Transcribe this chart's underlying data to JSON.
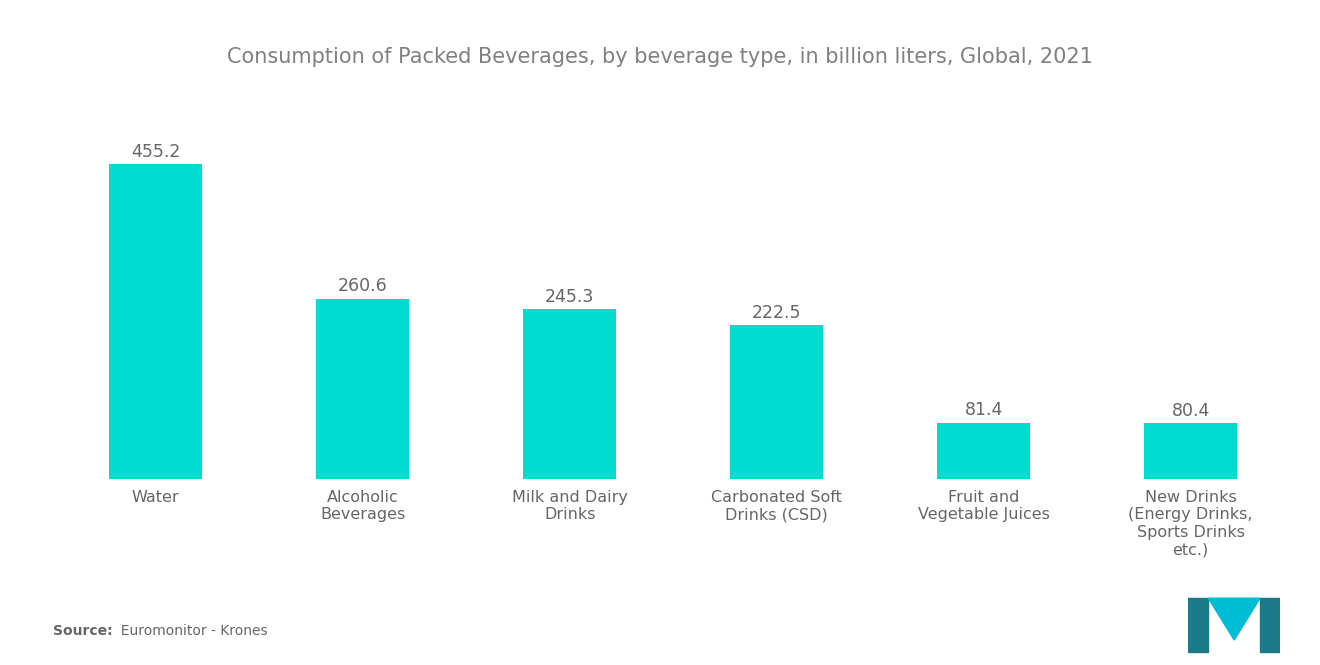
{
  "title": "Consumption of Packed Beverages, by beverage type, in billion liters, Global, 2021",
  "categories": [
    "Water",
    "Alcoholic\nBeverages",
    "Milk and Dairy\nDrinks",
    "Carbonated Soft\nDrinks (CSD)",
    "Fruit and\nVegetable Juices",
    "New Drinks\n(Energy Drinks,\nSports Drinks\netc.)"
  ],
  "values": [
    455.2,
    260.6,
    245.3,
    222.5,
    81.4,
    80.4
  ],
  "bar_color": "#00DDD0",
  "background_color": "#ffffff",
  "title_color": "#808080",
  "label_color": "#666666",
  "value_color": "#666666",
  "source_bold": "Source:",
  "source_rest": "  Euromonitor - Krones",
  "ylim": [
    0,
    520
  ],
  "title_fontsize": 15,
  "label_fontsize": 11.5,
  "value_fontsize": 12.5,
  "bar_width": 0.45
}
